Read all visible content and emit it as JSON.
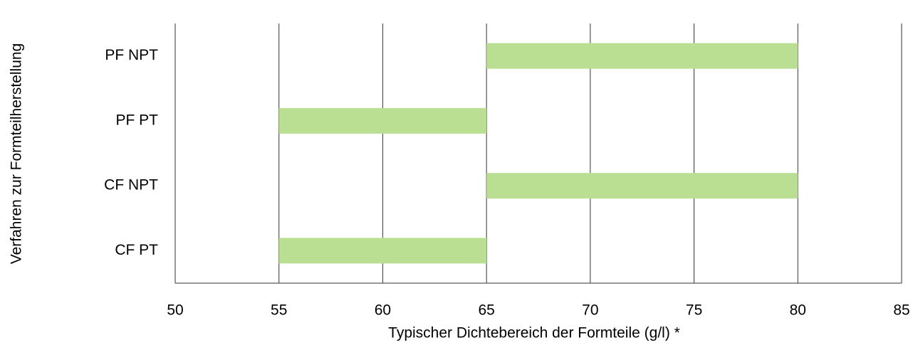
{
  "chart_data": {
    "type": "bar",
    "orientation": "horizontal-range",
    "title": "",
    "xlabel": "Typischer Dichtebereich der Formteile (g/l) *",
    "ylabel": "Verfahren zur Formteilherstellung",
    "xlim": [
      50,
      85
    ],
    "x_ticks": [
      "50",
      "55",
      "60",
      "65",
      "70",
      "75",
      "80",
      "85"
    ],
    "grid": true,
    "legend": "none",
    "bar_color": "#bbdf92",
    "grid_color": "#333333",
    "categories": [
      "PF NPT",
      "PF PT",
      "CF NPT",
      "CF PT"
    ],
    "ranges": [
      {
        "category": "PF NPT",
        "start": 65,
        "end": 80
      },
      {
        "category": "PF PT",
        "start": 55,
        "end": 65
      },
      {
        "category": "CF NPT",
        "start": 65,
        "end": 80
      },
      {
        "category": "CF PT",
        "start": 55,
        "end": 65
      }
    ]
  }
}
